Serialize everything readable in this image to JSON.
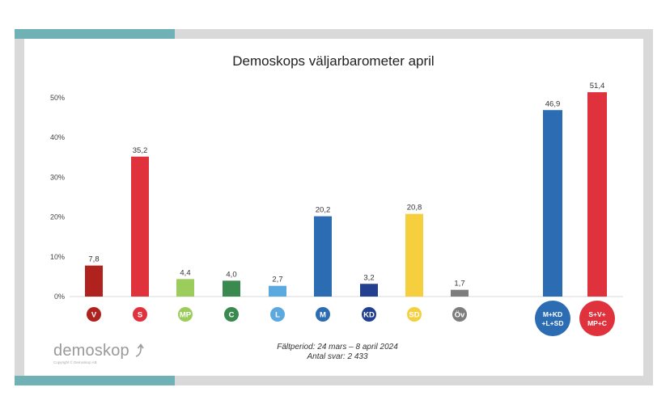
{
  "chart_data": {
    "type": "bar",
    "title": "Demoskops väljarbarometer april",
    "ylim": [
      0,
      50
    ],
    "yticks": [
      "0%",
      "10%",
      "20%",
      "30%",
      "40%",
      "50%"
    ],
    "grid": false,
    "categories": [
      "V",
      "S",
      "MP",
      "C",
      "L",
      "M",
      "KD",
      "SD",
      "Öv",
      "M+KD +L+SD",
      "S+V+ MP+C"
    ],
    "badge_lines": [
      [
        "V"
      ],
      [
        "S"
      ],
      [
        "MP"
      ],
      [
        "C"
      ],
      [
        "L"
      ],
      [
        "M"
      ],
      [
        "KD"
      ],
      [
        "SD"
      ],
      [
        "Öv"
      ],
      [
        "M+KD",
        "+L+SD"
      ],
      [
        "S+V+",
        "MP+C"
      ]
    ],
    "values": [
      7.8,
      35.2,
      4.4,
      4.0,
      2.7,
      20.2,
      3.2,
      20.8,
      1.7,
      46.9,
      51.4
    ],
    "value_labels": [
      "7,8",
      "35,2",
      "4,4",
      "4,0",
      "2,7",
      "20,2",
      "3,2",
      "20,8",
      "1,7",
      "46,9",
      "51,4"
    ],
    "colors": [
      "#b0221e",
      "#e0323c",
      "#9ccc5b",
      "#3a8a4f",
      "#5ca9e0",
      "#2b6cb3",
      "#22408f",
      "#f5cf3e",
      "#7d7d7d",
      "#2b6cb3",
      "#e0323c"
    ],
    "badge_colors": [
      "#b0221e",
      "#e0323c",
      "#9ccc5b",
      "#3a8a4f",
      "#5ca9e0",
      "#2b6cb3",
      "#22408f",
      "#f5cf3e",
      "#7d7d7d",
      "#2b6cb3",
      "#e0323c"
    ]
  },
  "footer": {
    "field_period": "Fältperiod: 24 mars –  8 april 2024",
    "responses": "Antal svar: 2 433"
  },
  "logo": {
    "word": "demoskop",
    "copyright": "Copyright © Demoskop AB"
  }
}
